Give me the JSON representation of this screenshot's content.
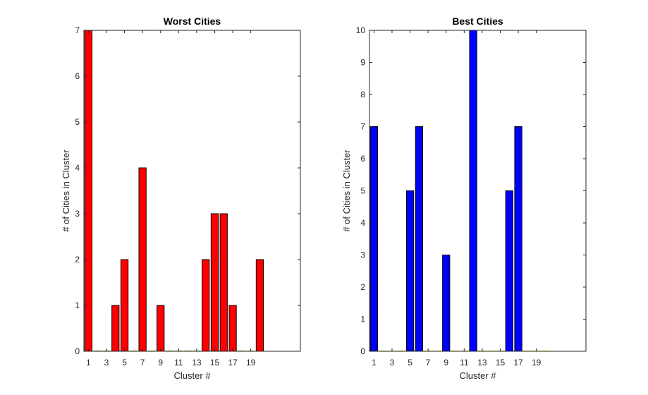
{
  "chart_data": [
    {
      "type": "bar",
      "title": "Worst Cities",
      "xlabel": "Cluster #",
      "ylabel": "# of Cities in Cluster",
      "ylim": [
        0,
        7
      ],
      "xlim": [
        0.5,
        24.5
      ],
      "x_ticks": [
        1,
        3,
        5,
        7,
        9,
        11,
        13,
        15,
        17,
        19
      ],
      "y_ticks": [
        0,
        1,
        2,
        3,
        4,
        5,
        6,
        7
      ],
      "categories": [
        1,
        2,
        3,
        4,
        5,
        6,
        7,
        8,
        9,
        10,
        11,
        12,
        13,
        14,
        15,
        16,
        17,
        18,
        19,
        20
      ],
      "values": [
        7,
        0,
        0,
        1,
        2,
        0,
        4,
        0,
        1,
        0,
        0,
        0,
        0,
        2,
        3,
        3,
        1,
        0,
        0,
        2
      ],
      "bar_color": "#ff0000",
      "edge_color": "#000000",
      "zero_bar_color": "#7fbf00",
      "grid": false
    },
    {
      "type": "bar",
      "title": "Best Cities",
      "xlabel": "Cluster #",
      "ylabel": "# of Cities in Cluster",
      "ylim": [
        0,
        10
      ],
      "xlim": [
        0.5,
        24.5
      ],
      "x_ticks": [
        1,
        3,
        5,
        7,
        9,
        11,
        13,
        15,
        17,
        19
      ],
      "y_ticks": [
        0,
        1,
        2,
        3,
        4,
        5,
        6,
        7,
        8,
        9,
        10
      ],
      "categories": [
        1,
        2,
        3,
        4,
        5,
        6,
        7,
        8,
        9,
        10,
        11,
        12,
        13,
        14,
        15,
        16,
        17,
        18,
        19,
        20
      ],
      "values": [
        7,
        0,
        0,
        0,
        5,
        7,
        0,
        0,
        3,
        0,
        0,
        10,
        0,
        0,
        0,
        5,
        7,
        0,
        0,
        0
      ],
      "bar_color": "#0000ff",
      "edge_color": "#000000",
      "zero_bar_color": "#e8e800",
      "grid": false
    }
  ]
}
